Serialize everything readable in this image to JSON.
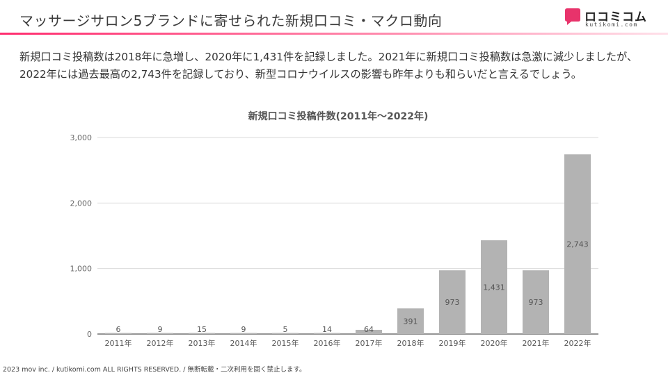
{
  "header": {
    "title": "マッサージサロン5ブランドに寄せられた新規口コミ・マクロ動向",
    "brand_name": "ロコミコム",
    "brand_sub": "kutikomi.com",
    "accent_color": "#e8336b"
  },
  "lead_text": "新規口コミ投稿数は2018年に急増し、2020年に1,431件を記録しました。2021年に新規口コミ投稿数は急激に減少しましたが、2022年には過去最高の2,743件を記録しており、新型コロナウイルスの影響も昨年よりも和らいだと言えるでしょう。",
  "chart_data": {
    "type": "bar",
    "title": "新規口コミ投稿件数(2011年〜2022年)",
    "categories": [
      "2011年",
      "2012年",
      "2013年",
      "2014年",
      "2015年",
      "2016年",
      "2017年",
      "2018年",
      "2019年",
      "2020年",
      "2021年",
      "2022年"
    ],
    "values": [
      6,
      9,
      15,
      9,
      5,
      14,
      64,
      391,
      973,
      1431,
      973,
      2743
    ],
    "data_labels": [
      "6",
      "9",
      "15",
      "9",
      "5",
      "14",
      "64",
      "391",
      "973",
      "1,431",
      "973",
      "2,743"
    ],
    "y_ticks": [
      "0",
      "1,000",
      "2,000",
      "3,000"
    ],
    "ylim": [
      0,
      3000
    ],
    "grid": true,
    "legend": "none",
    "bar_color": "#b3b3b3"
  },
  "footer": {
    "copyright": "2023 mov inc. / kutikomi.com ALL RIGHTS RESERVED. / 無断転載・二次利用を固く禁止します。"
  }
}
